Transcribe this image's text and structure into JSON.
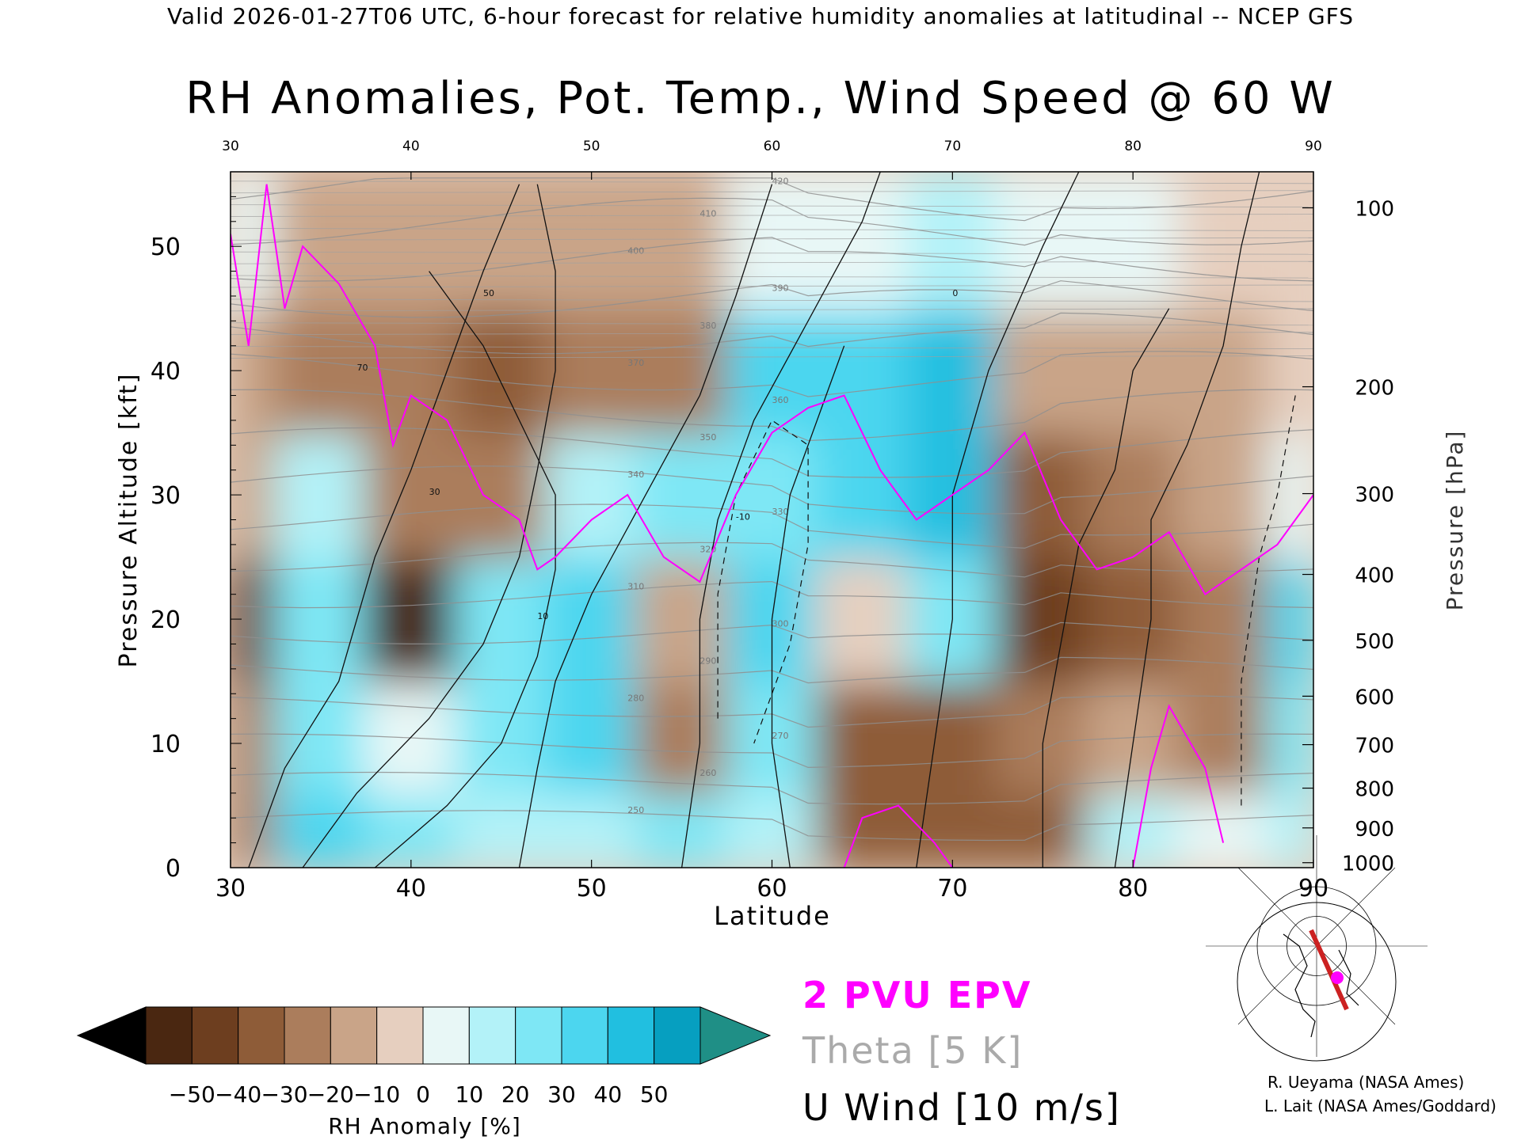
{
  "header": {
    "valid_line": "Valid 2026-01-27T06 UTC, 6-hour forecast for relative humidity anomalies at latitudinal -- NCEP GFS"
  },
  "chart_data": {
    "type": "heatmap",
    "title": "RH Anomalies, Pot. Temp., Wind Speed @ 60 W",
    "xlabel": "Latitude",
    "ylabel": "Pressure Altitude [kft]",
    "y2label": "Pressure [hPa]",
    "xlim": [
      30,
      90
    ],
    "ylim": [
      0,
      56
    ],
    "x_ticks": [
      "30",
      "40",
      "50",
      "60",
      "70",
      "80",
      "90"
    ],
    "x_top_ticks": [
      "30",
      "40",
      "50",
      "60",
      "70",
      "80",
      "90"
    ],
    "y_ticks": [
      "0",
      "10",
      "20",
      "30",
      "40",
      "50"
    ],
    "y_tick_values": [
      0,
      10,
      20,
      30,
      40,
      50
    ],
    "pressure_ticks": [
      {
        "label": "100",
        "kft": 53.1
      },
      {
        "label": "200",
        "kft": 38.7
      },
      {
        "label": "300",
        "kft": 30.1
      },
      {
        "label": "400",
        "kft": 23.6
      },
      {
        "label": "500",
        "kft": 18.3
      },
      {
        "label": "600",
        "kft": 13.8
      },
      {
        "label": "700",
        "kft": 9.9
      },
      {
        "label": "800",
        "kft": 6.4
      },
      {
        "label": "900",
        "kft": 3.2
      },
      {
        "label": "1000",
        "kft": 0.4
      }
    ],
    "colorbar": {
      "label": "RH Anomaly [%]",
      "tick_labels": [
        "−50",
        "−40",
        "−30",
        "−20",
        "−10",
        "0",
        "10",
        "20",
        "30",
        "40",
        "50"
      ],
      "colors": [
        "#000000",
        "#4a2711",
        "#6d3e1f",
        "#8e5c38",
        "#ab7d5c",
        "#c9a488",
        "#e6cfbf",
        "#e8f7f6",
        "#b3f2f8",
        "#7ee7f5",
        "#4cd6ef",
        "#21bfe0",
        "#069fc0",
        "#1f8f86"
      ]
    },
    "overlays": [
      {
        "name": "2 PVU EPV",
        "color": "#ff00ff"
      },
      {
        "name": "Theta [5 K]",
        "color": "#aaaaaa"
      },
      {
        "name": "U Wind [10 m/s]",
        "color": "#000000"
      }
    ],
    "rh_field": {
      "latitudes": [
        30,
        35,
        40,
        45,
        50,
        55,
        60,
        65,
        70,
        75,
        80,
        85,
        90
      ],
      "altitudes_kft": [
        2,
        10,
        20,
        30,
        40,
        50
      ],
      "rh_anomaly_pct": [
        [
          -20,
          35,
          25,
          15,
          15,
          30,
          20,
          -35,
          -30,
          -30,
          15,
          10,
          20
        ],
        [
          -25,
          30,
          10,
          25,
          35,
          -25,
          30,
          -30,
          -35,
          -25,
          -10,
          -20,
          25
        ],
        [
          -40,
          25,
          -50,
          30,
          35,
          -15,
          35,
          0,
          30,
          -40,
          -30,
          -25,
          35
        ],
        [
          -15,
          15,
          -20,
          -25,
          20,
          25,
          30,
          35,
          45,
          -30,
          -20,
          -15,
          10
        ],
        [
          -10,
          -20,
          -20,
          -35,
          -25,
          -20,
          40,
          40,
          45,
          -15,
          -15,
          -10,
          0
        ],
        [
          5,
          -15,
          -10,
          -10,
          -10,
          -10,
          10,
          10,
          15,
          10,
          5,
          0,
          0
        ]
      ]
    },
    "theta_contour_labels": [
      "250",
      "260",
      "270",
      "280",
      "290",
      "300",
      "310",
      "320",
      "330",
      "340",
      "350",
      "360",
      "370",
      "380",
      "390",
      "400",
      "410",
      "420"
    ],
    "wind_contour_labels": [
      "0",
      "10",
      "30",
      "50",
      "70",
      "-10"
    ]
  },
  "inset_map": {
    "cross_section_color": "#cc2222",
    "marker_color": "#ff00ff"
  },
  "credits": {
    "line1": "R. Ueyama (NASA Ames)",
    "line2": "L. Lait (NASA Ames/Goddard)"
  }
}
